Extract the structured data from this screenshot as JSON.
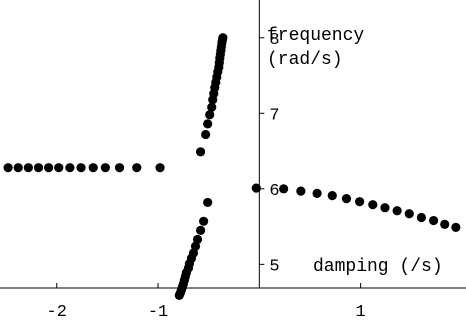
{
  "chart_data": {
    "type": "scatter",
    "title": "",
    "xlabel": "damping (/s)",
    "ylabel": "frequency\n(rad/s)",
    "xlim": [
      -2.56,
      2.04
    ],
    "ylim": [
      4.25,
      8.5
    ],
    "x_ticks": [
      -2,
      -1,
      1
    ],
    "x_tick_labels": [
      "-2",
      "-1",
      "1"
    ],
    "y_ticks": [
      5,
      6,
      7,
      8
    ],
    "y_tick_labels": [
      "5",
      "6",
      "7",
      "8"
    ],
    "grid": false,
    "point_color": "#000000",
    "series": [
      {
        "values": [
          {
            "x": -2.48,
            "y": 6.28
          },
          {
            "x": -2.38,
            "y": 6.28
          },
          {
            "x": -2.28,
            "y": 6.28
          },
          {
            "x": -2.18,
            "y": 6.28
          },
          {
            "x": -2.08,
            "y": 6.28
          },
          {
            "x": -1.98,
            "y": 6.28
          },
          {
            "x": -1.87,
            "y": 6.28
          },
          {
            "x": -1.76,
            "y": 6.28
          },
          {
            "x": -1.64,
            "y": 6.28
          },
          {
            "x": -1.52,
            "y": 6.28
          },
          {
            "x": -1.38,
            "y": 6.28
          },
          {
            "x": -1.21,
            "y": 6.28
          },
          {
            "x": -0.98,
            "y": 6.28
          },
          {
            "x": -0.58,
            "y": 6.49
          },
          {
            "x": -0.53,
            "y": 6.72
          },
          {
            "x": -0.51,
            "y": 6.86
          },
          {
            "x": -0.49,
            "y": 6.98
          },
          {
            "x": -0.47,
            "y": 7.08
          },
          {
            "x": -0.46,
            "y": 7.18
          },
          {
            "x": -0.45,
            "y": 7.26
          },
          {
            "x": -0.44,
            "y": 7.34
          },
          {
            "x": -0.43,
            "y": 7.41
          },
          {
            "x": -0.42,
            "y": 7.48
          },
          {
            "x": -0.41,
            "y": 7.55
          },
          {
            "x": -0.4,
            "y": 7.61
          },
          {
            "x": -0.395,
            "y": 7.67
          },
          {
            "x": -0.39,
            "y": 7.73
          },
          {
            "x": -0.385,
            "y": 7.78
          },
          {
            "x": -0.38,
            "y": 7.83
          },
          {
            "x": -0.375,
            "y": 7.88
          },
          {
            "x": -0.37,
            "y": 7.93
          },
          {
            "x": -0.365,
            "y": 7.97
          },
          {
            "x": -0.36,
            "y": 8.0
          },
          {
            "x": -0.51,
            "y": 5.82
          },
          {
            "x": -0.55,
            "y": 5.57
          },
          {
            "x": -0.58,
            "y": 5.45
          },
          {
            "x": -0.61,
            "y": 5.33
          },
          {
            "x": -0.63,
            "y": 5.24
          },
          {
            "x": -0.65,
            "y": 5.15
          },
          {
            "x": -0.67,
            "y": 5.08
          },
          {
            "x": -0.69,
            "y": 5.01
          },
          {
            "x": -0.7,
            "y": 4.95
          },
          {
            "x": -0.72,
            "y": 4.89
          },
          {
            "x": -0.73,
            "y": 4.84
          },
          {
            "x": -0.74,
            "y": 4.79
          },
          {
            "x": -0.75,
            "y": 4.74
          },
          {
            "x": -0.76,
            "y": 4.7
          },
          {
            "x": -0.77,
            "y": 4.66
          },
          {
            "x": -0.78,
            "y": 4.62
          },
          {
            "x": -0.79,
            "y": 4.59
          },
          {
            "x": -0.03,
            "y": 6.01
          },
          {
            "x": 0.24,
            "y": 6.0
          },
          {
            "x": 0.41,
            "y": 5.97
          },
          {
            "x": 0.57,
            "y": 5.94
          },
          {
            "x": 0.72,
            "y": 5.91
          },
          {
            "x": 0.86,
            "y": 5.87
          },
          {
            "x": 0.99,
            "y": 5.83
          },
          {
            "x": 1.12,
            "y": 5.79
          },
          {
            "x": 1.24,
            "y": 5.75
          },
          {
            "x": 1.36,
            "y": 5.71
          },
          {
            "x": 1.48,
            "y": 5.67
          },
          {
            "x": 1.6,
            "y": 5.62
          },
          {
            "x": 1.72,
            "y": 5.58
          },
          {
            "x": 1.83,
            "y": 5.53
          },
          {
            "x": 1.94,
            "y": 5.49
          }
        ]
      }
    ]
  }
}
